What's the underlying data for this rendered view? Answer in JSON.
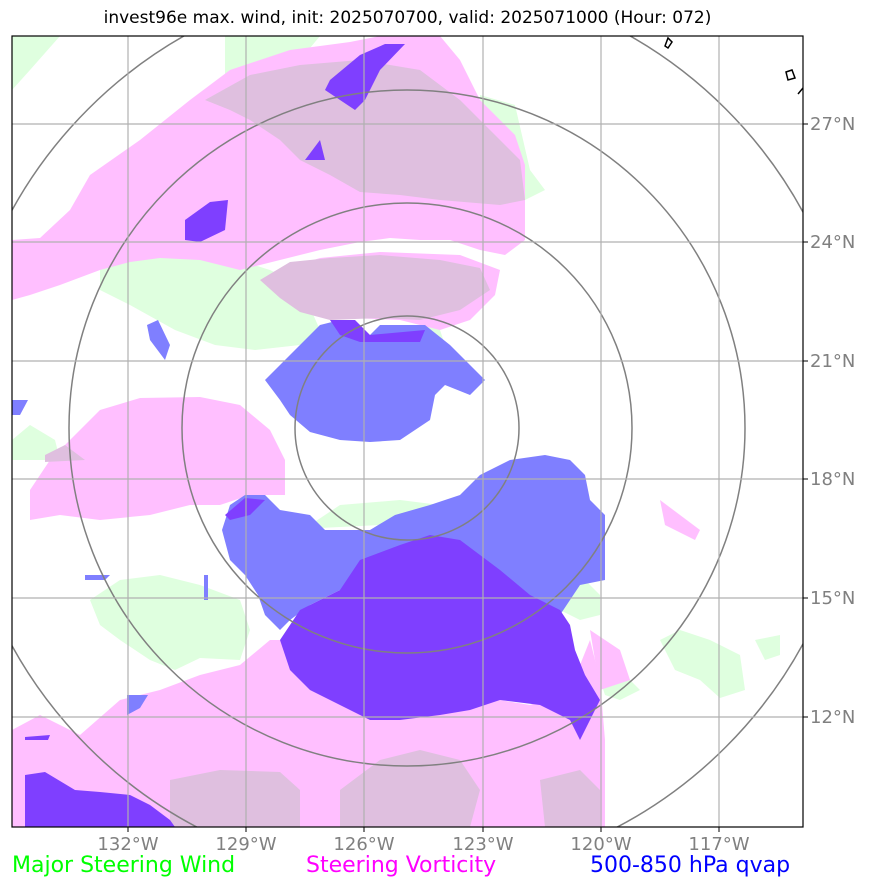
{
  "title": "invest96e max. wind, init: 2025070700, valid: 2025071000 (Hour: 072)",
  "longitude_labels": [
    "132°W",
    "129°W",
    "126°W",
    "123°W",
    "120°W",
    "117°W"
  ],
  "latitude_labels": [
    "27°N",
    "24°N",
    "21°N",
    "18°N",
    "15°N",
    "12°N"
  ],
  "legend": [
    {
      "label": "Major Steering Wind",
      "color": "#00ff00"
    },
    {
      "label": "Steering Vorticity",
      "color": "#ff00ff"
    },
    {
      "label": "500-850 hPa qvap",
      "color": "#0000ff"
    }
  ],
  "layer_colors": {
    "steering_wind_fill": "#dfffdf",
    "vorticity_fill": "#ffbfff",
    "qvap_fill": "#7f7fff",
    "qvap_dark_fill": "#7f3fff",
    "overlap_fill": "#dfbfdf",
    "range_ring": "#808080",
    "gridline": "#b0b0b0"
  }
}
